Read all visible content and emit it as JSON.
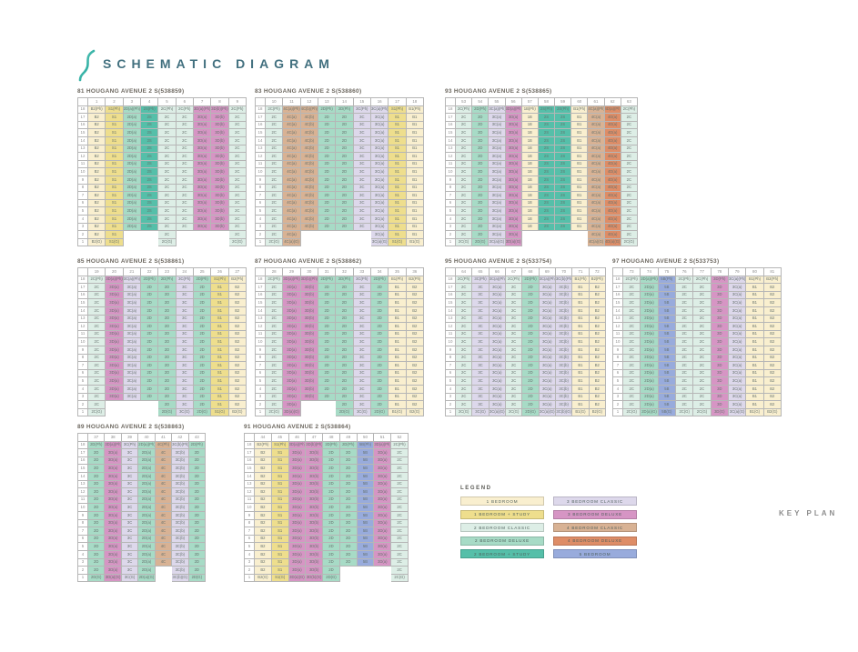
{
  "page": {
    "title": "SCHEMATIC DIAGRAM",
    "key_plan_label": "KEY PLAN"
  },
  "suffixes": {
    "penthouse": "(Ph)",
    "ground": "(G)"
  },
  "floors": [
    18,
    17,
    16,
    15,
    14,
    13,
    12,
    11,
    10,
    9,
    8,
    7,
    6,
    5,
    4,
    3,
    2,
    1
  ],
  "unit_types": {
    "b1": {
      "label": "1 BEDROOM",
      "color": "#f9efcf"
    },
    "b1s": {
      "label": "1 BEDROOM + STUDY",
      "color": "#eede8d"
    },
    "b2c": {
      "label": "2 BEDROOM CLASSIC",
      "color": "#ddeee6"
    },
    "b2d": {
      "label": "2 BEDROOM DELUXE",
      "color": "#a7dbc6"
    },
    "b2s": {
      "label": "2 BEDROOM + STUDY",
      "color": "#55bfa9"
    },
    "b3c": {
      "label": "3 BEDROOM CLASSIC",
      "color": "#ddd8eb"
    },
    "b3d": {
      "label": "3 BEDROOM DELUXE",
      "color": "#d695c4"
    },
    "b4c": {
      "label": "4 BEDROOM CLASSIC",
      "color": "#d8b294"
    },
    "b4d": {
      "label": "4 BEDROOM DELUXE",
      "color": "#de8d67"
    },
    "b5": {
      "label": "5 BEDROOM",
      "color": "#98abdc"
    }
  },
  "legend": {
    "title": "LEGEND",
    "left": [
      "b1",
      "b1s",
      "b2c",
      "b2d",
      "b2s"
    ],
    "right": [
      "b3c",
      "b3d",
      "b4c",
      "b4d",
      "b5"
    ]
  },
  "blocks": [
    {
      "id": "81",
      "title": "81 HOUGANG AVENUE 2 S(538859)",
      "stacks": [
        {
          "no": "1",
          "code": "B2",
          "type": "b1"
        },
        {
          "no": "2",
          "code": "S1",
          "type": "b1s"
        },
        {
          "no": "3",
          "code": "2D(a)",
          "type": "b2d"
        },
        {
          "no": "4",
          "code": "2S",
          "type": "b2s"
        },
        {
          "no": "5",
          "code": "2C",
          "type": "b2c"
        },
        {
          "no": "6",
          "code": "2C",
          "type": "b2c"
        },
        {
          "no": "7",
          "code": "3D(a)",
          "type": "b3d"
        },
        {
          "no": "8",
          "code": "3D(b)",
          "type": "b3d"
        },
        {
          "no": "9",
          "code": "2C",
          "type": "b2c"
        }
      ],
      "blank_bottom_stacks": [
        "3",
        "4",
        "6",
        "7",
        "8"
      ]
    },
    {
      "id": "83",
      "title": "83 HOUGANG AVENUE 2 S(538860)",
      "stacks": [
        {
          "no": "10",
          "code": "2C",
          "type": "b2c"
        },
        {
          "no": "11",
          "code": "4C(a)",
          "type": "b4c"
        },
        {
          "no": "12",
          "code": "4C(b)",
          "type": "b4c"
        },
        {
          "no": "13",
          "code": "2D",
          "type": "b2d"
        },
        {
          "no": "14",
          "code": "2D",
          "type": "b2d"
        },
        {
          "no": "15",
          "code": "3C",
          "type": "b3c"
        },
        {
          "no": "16",
          "code": "3C(a)",
          "type": "b3c"
        },
        {
          "no": "17",
          "code": "S1",
          "type": "b1s"
        },
        {
          "no": "18",
          "code": "B1",
          "type": "b1"
        }
      ],
      "blank_bottom_stacks": [
        "12",
        "13",
        "14",
        "15"
      ]
    },
    {
      "id": "93",
      "title": "93 HOUGANG AVENUE 2 S(538865)",
      "stacks": [
        {
          "no": "53",
          "code": "2C",
          "type": "b2c"
        },
        {
          "no": "54",
          "code": "2D",
          "type": "b2d"
        },
        {
          "no": "55",
          "code": "3C(a)",
          "type": "b3c"
        },
        {
          "no": "56",
          "code": "3D(a)",
          "type": "b3d"
        },
        {
          "no": "57",
          "code": "1B",
          "type": "b1"
        },
        {
          "no": "58",
          "code": "2S",
          "type": "b2s"
        },
        {
          "no": "59",
          "code": "2S",
          "type": "b2s"
        },
        {
          "no": "60",
          "code": "B1",
          "type": "b1"
        },
        {
          "no": "61",
          "code": "4C(a)",
          "type": "b4c"
        },
        {
          "no": "62",
          "code": "4D(a)",
          "type": "b4d"
        },
        {
          "no": "63",
          "code": "2C",
          "type": "b2c"
        }
      ],
      "blank_bottom_stacks": [
        "57",
        "58",
        "59",
        "60"
      ]
    },
    {
      "id": "85",
      "title": "85 HOUGANG AVENUE 2 S(538861)",
      "stacks": [
        {
          "no": "19",
          "code": "2C",
          "type": "b2c"
        },
        {
          "no": "20",
          "code": "3D(a)",
          "type": "b3d"
        },
        {
          "no": "21",
          "code": "3C(a)",
          "type": "b3c"
        },
        {
          "no": "22",
          "code": "2D",
          "type": "b2d"
        },
        {
          "no": "23",
          "code": "2D",
          "type": "b2d"
        },
        {
          "no": "24",
          "code": "3C",
          "type": "b3c"
        },
        {
          "no": "25",
          "code": "2D",
          "type": "b2d"
        },
        {
          "no": "26",
          "code": "S1",
          "type": "b1s"
        },
        {
          "no": "27",
          "code": "B2",
          "type": "b1"
        }
      ],
      "blank_bottom_stacks": [
        "20",
        "21",
        "22"
      ]
    },
    {
      "id": "87",
      "title": "87 HOUGANG AVENUE 2 S(538862)",
      "stacks": [
        {
          "no": "28",
          "code": "2C",
          "type": "b2c"
        },
        {
          "no": "29",
          "code": "3D(a)",
          "type": "b3d"
        },
        {
          "no": "30",
          "code": "3D(b)",
          "type": "b3d"
        },
        {
          "no": "31",
          "code": "2D",
          "type": "b2d"
        },
        {
          "no": "32",
          "code": "2D",
          "type": "b2d"
        },
        {
          "no": "33",
          "code": "3C",
          "type": "b3c"
        },
        {
          "no": "34",
          "code": "2D",
          "type": "b2d"
        },
        {
          "no": "35",
          "code": "B1",
          "type": "b1"
        },
        {
          "no": "36",
          "code": "B2",
          "type": "b1"
        }
      ],
      "blank_bottom_stacks": [
        "30",
        "31"
      ]
    },
    {
      "id": "95",
      "title": "95 HOUGANG AVENUE 2 S(533754)",
      "stacks": [
        {
          "no": "64",
          "code": "2C",
          "type": "b2c"
        },
        {
          "no": "65",
          "code": "3C",
          "type": "b3c"
        },
        {
          "no": "66",
          "code": "3C(a)",
          "type": "b3c"
        },
        {
          "no": "67",
          "code": "2C",
          "type": "b2c"
        },
        {
          "no": "68",
          "code": "2D",
          "type": "b2d"
        },
        {
          "no": "69",
          "code": "3C(a)",
          "type": "b3c"
        },
        {
          "no": "70",
          "code": "3C(b)",
          "type": "b3c"
        },
        {
          "no": "71",
          "code": "B1",
          "type": "b1"
        },
        {
          "no": "72",
          "code": "B2",
          "type": "b1"
        }
      ],
      "blank_bottom_stacks": []
    },
    {
      "id": "97",
      "title": "97 HOUGANG AVENUE 2 S(533753)",
      "stacks": [
        {
          "no": "73",
          "code": "2C",
          "type": "b2c"
        },
        {
          "no": "74",
          "code": "2D(a)",
          "type": "b2d"
        },
        {
          "no": "75",
          "code": "5B",
          "type": "b5"
        },
        {
          "no": "76",
          "code": "2C",
          "type": "b2c"
        },
        {
          "no": "77",
          "code": "2C",
          "type": "b2c"
        },
        {
          "no": "78",
          "code": "3D",
          "type": "b3d"
        },
        {
          "no": "79",
          "code": "3C(a)",
          "type": "b3c"
        },
        {
          "no": "80",
          "code": "B1",
          "type": "b1"
        },
        {
          "no": "81",
          "code": "B2",
          "type": "b1"
        }
      ],
      "blank_bottom_stacks": []
    },
    {
      "id": "89",
      "title": "89 HOUGANG AVENUE 2 S(538863)",
      "stacks": [
        {
          "no": "37",
          "code": "2D",
          "type": "b2d"
        },
        {
          "no": "38",
          "code": "3D(a)",
          "type": "b3d"
        },
        {
          "no": "39",
          "code": "3C",
          "type": "b3c"
        },
        {
          "no": "40",
          "code": "2D(a)",
          "type": "b2d"
        },
        {
          "no": "41",
          "code": "4C",
          "type": "b4c"
        },
        {
          "no": "42",
          "code": "3C(b)",
          "type": "b3c"
        },
        {
          "no": "43",
          "code": "2D",
          "type": "b2d"
        }
      ],
      "blank_bottom_stacks": [
        "41"
      ]
    },
    {
      "id": "91",
      "title": "91 HOUGANG AVENUE 2 S(538864)",
      "stacks": [
        {
          "no": "44",
          "code": "B2",
          "type": "b1"
        },
        {
          "no": "45",
          "code": "S1",
          "type": "b1s"
        },
        {
          "no": "46",
          "code": "3D(a)",
          "type": "b3d"
        },
        {
          "no": "47",
          "code": "3D(b)",
          "type": "b3d"
        },
        {
          "no": "48",
          "code": "2D",
          "type": "b2d"
        },
        {
          "no": "49",
          "code": "2D",
          "type": "b2d"
        },
        {
          "no": "50",
          "code": "5B",
          "type": "b5"
        },
        {
          "no": "51",
          "code": "3D(a)",
          "type": "b3d"
        },
        {
          "no": "52",
          "code": "2C",
          "type": "b2c"
        }
      ],
      "blank_bottom_stacks": [
        "49",
        "50",
        "51"
      ]
    }
  ]
}
